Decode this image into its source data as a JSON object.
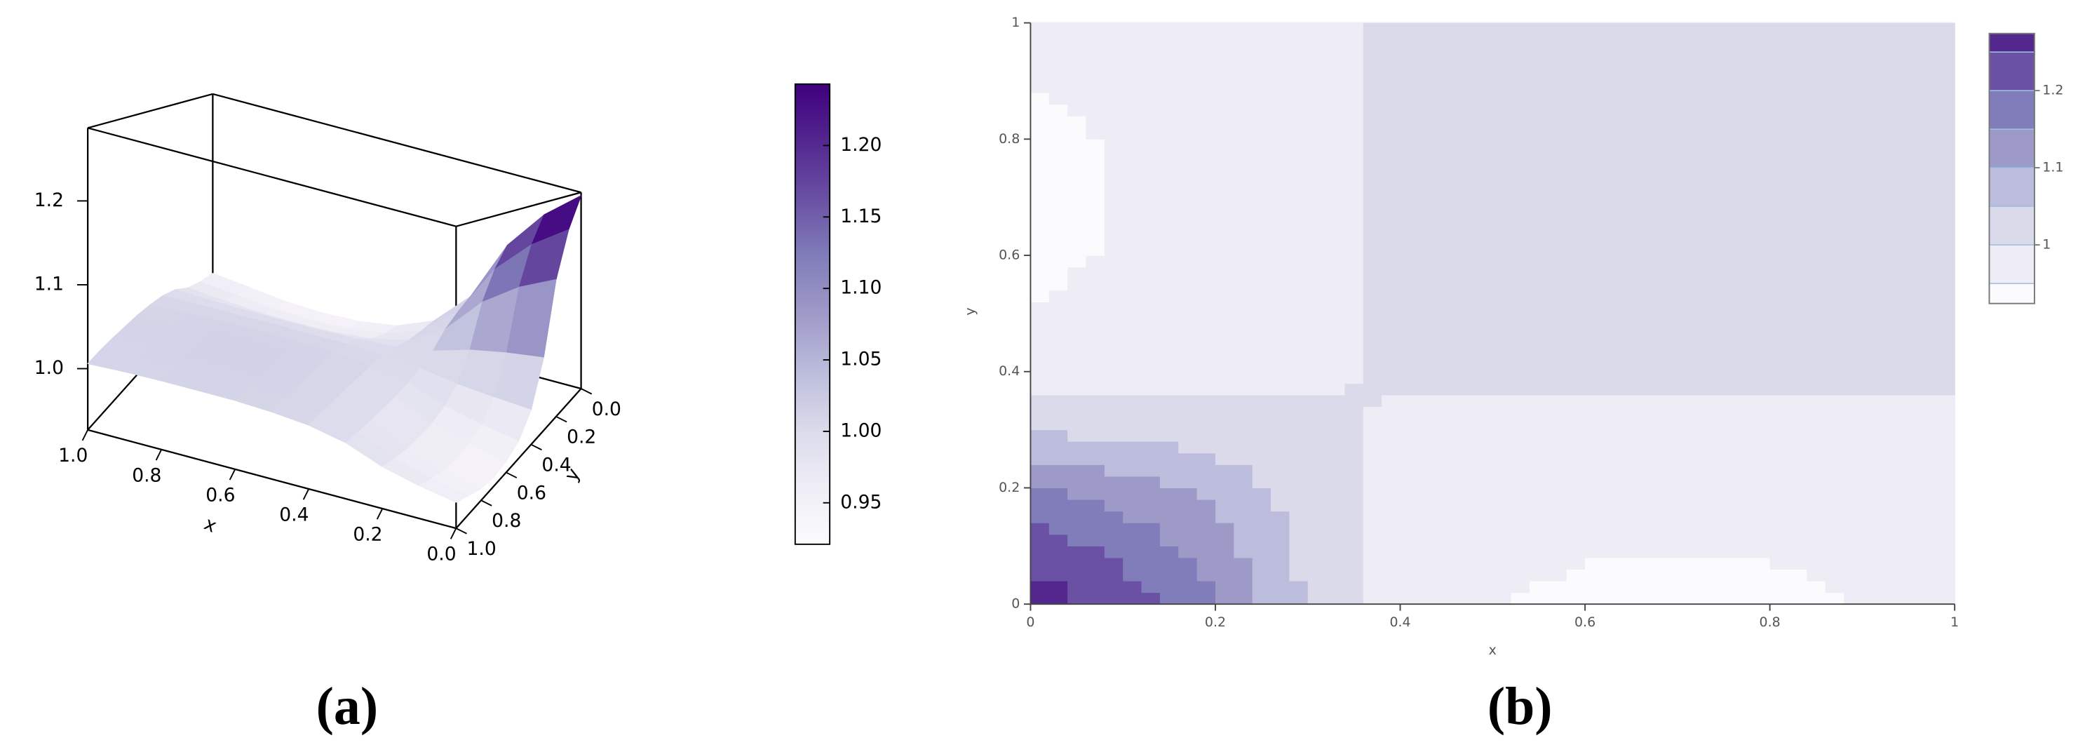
{
  "chart_data": [
    {
      "type": "surface",
      "panel_label": "(a)",
      "x_label": "x",
      "y_label": "y",
      "x": [
        0,
        0.1,
        0.2,
        0.3,
        0.4,
        0.5,
        0.6,
        0.7,
        0.8,
        0.9,
        1
      ],
      "y": [
        0,
        0.1,
        0.2,
        0.3,
        0.4,
        0.5,
        0.6,
        0.7,
        0.8,
        0.9,
        1
      ],
      "z": [
        [
          1.281,
          1.228,
          1.154,
          1.042,
          0.979,
          0.952,
          0.942,
          0.939,
          0.942,
          0.95,
          0.958
        ],
        [
          1.228,
          1.185,
          1.125,
          1.034,
          0.983,
          0.961,
          0.953,
          0.951,
          0.953,
          0.959,
          0.966
        ],
        [
          1.154,
          1.125,
          1.084,
          1.023,
          0.988,
          0.974,
          0.968,
          0.967,
          0.968,
          0.972,
          0.977
        ],
        [
          1.042,
          1.034,
          1.023,
          1.006,
          0.997,
          0.993,
          0.991,
          0.991,
          0.991,
          0.992,
          0.994
        ],
        [
          0.979,
          0.983,
          0.988,
          0.997,
          1.002,
          1.004,
          1.004,
          1.005,
          1.004,
          1.004,
          1.003
        ],
        [
          0.952,
          0.961,
          0.974,
          0.993,
          1.004,
          1.008,
          1.01,
          1.01,
          1.01,
          1.009,
          1.007
        ],
        [
          0.942,
          0.953,
          0.968,
          0.991,
          1.004,
          1.01,
          1.012,
          1.013,
          1.012,
          1.01,
          1.009
        ],
        [
          0.939,
          0.951,
          0.967,
          0.991,
          1.005,
          1.01,
          1.013,
          1.013,
          1.013,
          1.011,
          1.009
        ],
        [
          0.942,
          0.953,
          0.968,
          0.991,
          1.004,
          1.01,
          1.012,
          1.013,
          1.012,
          1.01,
          1.009
        ],
        [
          0.95,
          0.959,
          0.972,
          0.992,
          1.004,
          1.009,
          1.01,
          1.011,
          1.01,
          1.009,
          1.008
        ],
        [
          0.958,
          0.966,
          0.977,
          0.994,
          1.003,
          1.007,
          1.009,
          1.009,
          1.009,
          1.008,
          1.006
        ]
      ],
      "xlim": [
        0,
        1
      ],
      "ylim": [
        0,
        1
      ],
      "zlim": [
        0.927,
        1.287
      ],
      "xticks": [
        {
          "value": 0,
          "label": "0.0"
        },
        0.2,
        0.4,
        0.6,
        0.8,
        {
          "value": 1,
          "label": "1.0"
        }
      ],
      "yticks": [
        {
          "value": 0,
          "label": "0.0"
        },
        0.2,
        0.4,
        0.6,
        0.8,
        {
          "value": 1,
          "label": "1.0"
        }
      ],
      "zticks": [
        {
          "value": 1,
          "label": "1.0"
        },
        1.1,
        1.2
      ],
      "clim": [
        0.921,
        1.243
      ],
      "cticks": [
        0.95,
        {
          "value": 1,
          "label": "1.00"
        },
        1.05,
        {
          "value": 1.1,
          "label": "1.10"
        },
        1.15,
        {
          "value": 1.2,
          "label": "1.20"
        }
      ],
      "colormap": [
        "#fcfbfd",
        "#efedf5",
        "#dadaeb",
        "#bcbddc",
        "#9e9ac8",
        "#807dba",
        "#6a51a3",
        "#54278f",
        "#3f007d"
      ]
    },
    {
      "type": "contour",
      "panel_label": "(b)",
      "x_label": "x",
      "y_label": "y",
      "x": [
        0,
        0.1,
        0.2,
        0.3,
        0.4,
        0.5,
        0.6,
        0.7,
        0.8,
        0.9,
        1
      ],
      "y": [
        0,
        0.1,
        0.2,
        0.3,
        0.4,
        0.5,
        0.6,
        0.7,
        0.8,
        0.9,
        1
      ],
      "z": [
        [
          1.281,
          1.228,
          1.154,
          1.042,
          0.979,
          0.952,
          0.942,
          0.939,
          0.942,
          0.95,
          0.958
        ],
        [
          1.228,
          1.185,
          1.125,
          1.034,
          0.983,
          0.961,
          0.953,
          0.951,
          0.953,
          0.959,
          0.966
        ],
        [
          1.154,
          1.125,
          1.084,
          1.023,
          0.988,
          0.974,
          0.968,
          0.967,
          0.968,
          0.972,
          0.977
        ],
        [
          1.042,
          1.034,
          1.023,
          1.006,
          0.997,
          0.993,
          0.991,
          0.991,
          0.991,
          0.992,
          0.994
        ],
        [
          0.979,
          0.983,
          0.988,
          0.997,
          1.002,
          1.004,
          1.004,
          1.005,
          1.004,
          1.004,
          1.003
        ],
        [
          0.952,
          0.961,
          0.974,
          0.993,
          1.004,
          1.008,
          1.01,
          1.01,
          1.01,
          1.009,
          1.007
        ],
        [
          0.942,
          0.953,
          0.968,
          0.991,
          1.004,
          1.01,
          1.012,
          1.013,
          1.012,
          1.01,
          1.009
        ],
        [
          0.939,
          0.951,
          0.967,
          0.991,
          1.005,
          1.01,
          1.013,
          1.013,
          1.013,
          1.011,
          1.009
        ],
        [
          0.942,
          0.953,
          0.968,
          0.991,
          1.004,
          1.01,
          1.012,
          1.013,
          1.012,
          1.01,
          1.009
        ],
        [
          0.95,
          0.959,
          0.972,
          0.992,
          1.004,
          1.009,
          1.01,
          1.011,
          1.01,
          1.009,
          1.008
        ],
        [
          0.958,
          0.966,
          0.977,
          0.994,
          1.003,
          1.007,
          1.009,
          1.009,
          1.009,
          1.008,
          1.006
        ]
      ],
      "xlim": [
        0,
        1
      ],
      "ylim": [
        0,
        1
      ],
      "xticks": [
        0,
        0.2,
        0.4,
        0.6,
        0.8,
        1
      ],
      "yticks": [
        0,
        0.2,
        0.4,
        0.6,
        0.8,
        1
      ],
      "grid": true,
      "levels": [
        0.924,
        0.95,
        1,
        1.05,
        1.1,
        1.15,
        1.2,
        1.25,
        1.274
      ],
      "colors": [
        "#fbfbfd",
        "#eeedf5",
        "#dadaeb",
        "#bcbddc",
        "#9e9ac8",
        "#807dba",
        "#6a51a3",
        "#54278f"
      ],
      "cticks": [
        1,
        1.1,
        1.2
      ]
    }
  ]
}
